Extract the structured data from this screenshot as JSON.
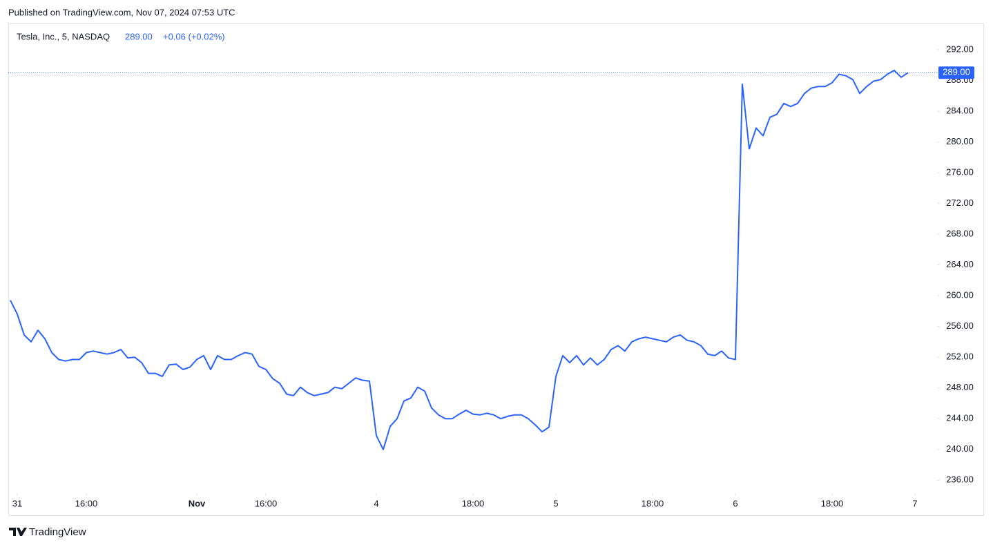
{
  "published": "Published on TradingView.com, Nov 07, 2024 07:53 UTC",
  "brand": "TradingView",
  "chart_data": {
    "type": "line",
    "symbol": "Tesla, Inc., 5, NASDAQ",
    "change": "+0.06 (+0.02%)",
    "last_price": {
      "value": 289.0,
      "label": "289.00"
    },
    "color": "#2962ff",
    "x": [
      -2,
      0,
      2,
      4,
      6,
      8,
      10,
      12,
      14,
      16,
      18,
      20,
      22,
      24,
      26,
      28,
      30,
      32,
      34,
      36,
      38,
      40,
      42,
      44,
      46,
      48,
      50,
      52,
      54,
      56,
      58,
      60,
      62,
      64,
      66,
      68,
      70,
      72,
      74,
      76,
      78,
      80,
      82,
      84,
      86,
      88,
      90,
      92,
      94,
      96,
      98,
      100,
      102,
      104,
      106,
      108,
      110,
      112,
      114,
      116,
      118,
      120,
      122,
      124,
      126,
      128,
      130,
      132,
      134,
      136,
      138,
      140,
      142,
      144,
      146,
      148,
      150,
      152,
      154,
      156,
      158,
      160,
      162,
      164,
      166,
      168,
      170,
      172,
      174,
      176,
      178,
      180,
      182,
      184,
      186,
      188,
      190,
      192,
      194,
      196,
      198,
      200,
      202,
      204,
      206,
      208,
      210,
      212,
      214,
      216,
      218,
      220,
      222,
      224,
      226,
      228,
      230,
      232,
      234,
      236,
      238,
      240,
      242,
      244,
      246,
      248,
      250,
      252,
      254,
      256,
      258
    ],
    "values": [
      259.4,
      257.6,
      254.9,
      254.0,
      255.5,
      254.4,
      252.6,
      251.7,
      251.5,
      251.7,
      251.7,
      252.6,
      252.8,
      252.6,
      252.4,
      252.6,
      253.0,
      251.9,
      252.0,
      251.3,
      249.9,
      249.9,
      249.5,
      251.0,
      251.1,
      250.4,
      250.7,
      251.7,
      252.2,
      250.4,
      252.2,
      251.7,
      251.7,
      252.2,
      252.6,
      252.4,
      250.8,
      250.4,
      249.2,
      248.6,
      247.2,
      247.0,
      248.1,
      247.4,
      247.0,
      247.2,
      247.4,
      248.1,
      247.9,
      248.6,
      249.3,
      249.0,
      248.9,
      241.8,
      240.0,
      243.0,
      244.0,
      246.3,
      246.7,
      248.1,
      247.6,
      245.4,
      244.5,
      244.0,
      244.0,
      244.6,
      245.1,
      244.6,
      244.5,
      244.7,
      244.5,
      244.0,
      244.3,
      244.5,
      244.5,
      244.0,
      243.2,
      242.3,
      242.9,
      249.5,
      252.2,
      251.3,
      252.2,
      251.0,
      251.9,
      251.0,
      251.7,
      253.0,
      253.5,
      252.8,
      254.0,
      254.4,
      254.6,
      254.4,
      254.2,
      254.0,
      254.6,
      254.9,
      254.2,
      254.0,
      253.5,
      252.4,
      252.2,
      252.8,
      251.9,
      251.7,
      287.5,
      279.1,
      281.8,
      280.8,
      283.2,
      283.6,
      285.0,
      284.6,
      285.0,
      286.3,
      287.0,
      287.2,
      287.2,
      287.7,
      288.8,
      288.6,
      288.1,
      286.3,
      287.2,
      287.9,
      288.1,
      288.8,
      289.3,
      288.4,
      289.0
    ],
    "xlim": [
      -2.6,
      266
    ],
    "xticks": [
      {
        "value": 0,
        "label": "31"
      },
      {
        "value": 20,
        "label": "16:00"
      },
      {
        "value": 52,
        "label": "Nov"
      },
      {
        "value": 72,
        "label": "16:00"
      },
      {
        "value": 104,
        "label": "4"
      },
      {
        "value": 132,
        "label": "18:00"
      },
      {
        "value": 156,
        "label": "5"
      },
      {
        "value": 184,
        "label": "18:00"
      },
      {
        "value": 208,
        "label": "6"
      },
      {
        "value": 236,
        "label": "18:00"
      },
      {
        "value": 260,
        "label": "7"
      }
    ],
    "ylim": [
      234.5,
      295.4
    ],
    "yticks": [
      {
        "value": 236,
        "label": "236.00"
      },
      {
        "value": 240,
        "label": "240.00"
      },
      {
        "value": 244,
        "label": "244.00"
      },
      {
        "value": 248,
        "label": "248.00"
      },
      {
        "value": 252,
        "label": "252.00"
      },
      {
        "value": 256,
        "label": "256.00"
      },
      {
        "value": 260,
        "label": "260.00"
      },
      {
        "value": 264,
        "label": "264.00"
      },
      {
        "value": 268,
        "label": "268.00"
      },
      {
        "value": 272,
        "label": "272.00"
      },
      {
        "value": 276,
        "label": "276.00"
      },
      {
        "value": 280,
        "label": "280.00"
      },
      {
        "value": 284,
        "label": "284.00"
      },
      {
        "value": 288,
        "label": "288.00"
      },
      {
        "value": 292,
        "label": "292.00"
      }
    ]
  }
}
